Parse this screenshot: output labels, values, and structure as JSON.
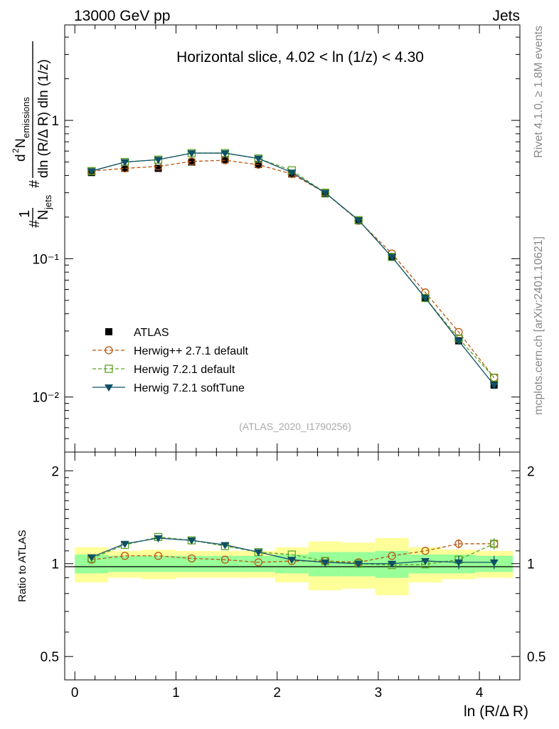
{
  "header": {
    "energy_label": "13000 GeV pp",
    "category_label": "Jets"
  },
  "side": {
    "rivet_label": "Rivet 4.1.0, ≥ 1.8M events",
    "mcplots_label": "mcplots.cern.ch [arXiv:2401.10621]"
  },
  "analysis_label": "(ATLAS_2020_I1790256)",
  "chart_data": {
    "type": "line",
    "title": "Horizontal slice, 4.02 < ln (1/z) < 4.30",
    "xlabel": "ln (R/Δ R)",
    "ylabel": "#frac{1}{N_{jets}} #frac{d^{2} N_{emissions}}{dln (R/Δ R) dln (1/z)}",
    "ratio_ylabel": "Ratio to ATLAS",
    "xlim": [
      -0.1,
      4.4
    ],
    "ylim": [
      0.004,
      4.9
    ],
    "ratio_ylim": [
      0.42,
      2.3
    ],
    "y_scale": "log",
    "x_ticks": [
      "0",
      "1",
      "2",
      "3",
      "4"
    ],
    "y_ticks": [
      "1",
      "10⁻¹",
      "10⁻²"
    ],
    "ratio_ticks": [
      "2",
      "1",
      "0.5"
    ],
    "x": [
      0.165,
      0.495,
      0.825,
      1.155,
      1.485,
      1.815,
      2.145,
      2.475,
      2.805,
      3.135,
      3.465,
      3.795,
      4.145
    ],
    "bin_edges": [
      0.0,
      0.33,
      0.66,
      0.99,
      1.32,
      1.65,
      1.98,
      2.31,
      2.64,
      2.97,
      3.3,
      3.63,
      3.96,
      4.33
    ],
    "series": [
      {
        "name": "ATLAS",
        "legend": "ATLAS",
        "style": "data",
        "color": "#000000",
        "values": [
          0.42,
          0.45,
          0.45,
          0.5,
          0.52,
          0.48,
          0.41,
          0.295,
          0.188,
          0.103,
          0.052,
          0.0255,
          0.0122
        ],
        "ratio": [
          1,
          1,
          1,
          1,
          1,
          1,
          1,
          1,
          1,
          1,
          1,
          1,
          1
        ]
      },
      {
        "name": "Herwig++ 2.7.1 default",
        "legend": "Herwig++ 2.7.1 default",
        "style": "circle-dashed",
        "color": "#b8550f",
        "values": [
          0.43,
          0.45,
          0.465,
          0.505,
          0.515,
          0.478,
          0.41,
          0.3,
          0.188,
          0.109,
          0.057,
          0.0295,
          0.0138
        ],
        "ratio": [
          1.03,
          1.06,
          1.06,
          1.04,
          1.03,
          1.01,
          1.02,
          1.02,
          1.01,
          1.06,
          1.1,
          1.16,
          1.16
        ]
      },
      {
        "name": "Herwig 7.2.1 default",
        "legend": "Herwig 7.2.1 default",
        "style": "square-dashed",
        "color": "#5aa322",
        "values": [
          0.43,
          0.5,
          0.52,
          0.58,
          0.58,
          0.53,
          0.435,
          0.3,
          0.19,
          0.103,
          0.052,
          0.0265,
          0.0138
        ],
        "ratio": [
          1.04,
          1.15,
          1.22,
          1.19,
          1.14,
          1.09,
          1.07,
          1.02,
          1.0,
          0.99,
          0.995,
          1.03,
          1.16
        ]
      },
      {
        "name": "Herwig 7.2.1 softTune",
        "legend": "Herwig 7.2.1 softTune",
        "style": "triangle-solid",
        "color": "#0e5066",
        "values": [
          0.43,
          0.5,
          0.52,
          0.58,
          0.58,
          0.53,
          0.42,
          0.3,
          0.19,
          0.103,
          0.052,
          0.0255,
          0.0122
        ],
        "ratio": [
          1.05,
          1.16,
          1.21,
          1.19,
          1.15,
          1.09,
          1.03,
          1.01,
          1.0,
          1.0,
          1.02,
          1.01,
          1.01
        ]
      }
    ],
    "uncertainty_bands": {
      "green_half_widths": [
        0.07,
        0.06,
        0.06,
        0.06,
        0.06,
        0.06,
        0.07,
        0.09,
        0.09,
        0.1,
        0.07,
        0.07,
        0.06
      ],
      "yellow_half_widths": [
        0.13,
        0.1,
        0.11,
        0.1,
        0.1,
        0.1,
        0.13,
        0.18,
        0.17,
        0.21,
        0.13,
        0.11,
        0.1
      ],
      "green_color": "#99ff99",
      "yellow_color": "#ffff99"
    }
  }
}
